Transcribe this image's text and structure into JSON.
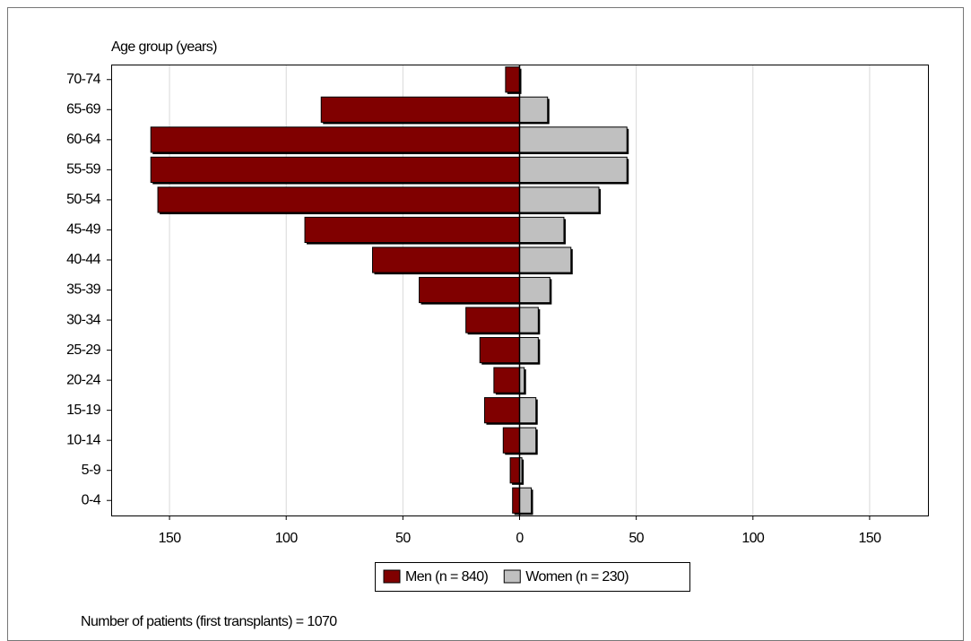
{
  "chart_data": {
    "type": "pyramid",
    "ylabel": "Age group (years)",
    "categories": [
      "70-74",
      "65-69",
      "60-64",
      "55-59",
      "50-54",
      "45-49",
      "40-44",
      "35-39",
      "30-34",
      "25-29",
      "20-24",
      "15-19",
      "10-14",
      "5-9",
      "0-4"
    ],
    "series": [
      {
        "name": "Men (n = 840)",
        "color": "#800000",
        "values": [
          6,
          85,
          158,
          158,
          155,
          92,
          63,
          43,
          23,
          17,
          11,
          15,
          7,
          4,
          3
        ]
      },
      {
        "name": "Women (n = 230)",
        "color": "#c0c0c0",
        "values": [
          0,
          12,
          46,
          46,
          34,
          19,
          22,
          13,
          8,
          8,
          2,
          7,
          7,
          1,
          5
        ]
      }
    ],
    "xlim": [
      -175,
      175
    ],
    "xticks": [
      {
        "value": -150,
        "label": "150"
      },
      {
        "value": -100,
        "label": "100"
      },
      {
        "value": -50,
        "label": "50"
      },
      0,
      50,
      100,
      150
    ],
    "grid": true,
    "legend": "bottom",
    "annotation": "Number of patients (first transplants) = 1070"
  }
}
